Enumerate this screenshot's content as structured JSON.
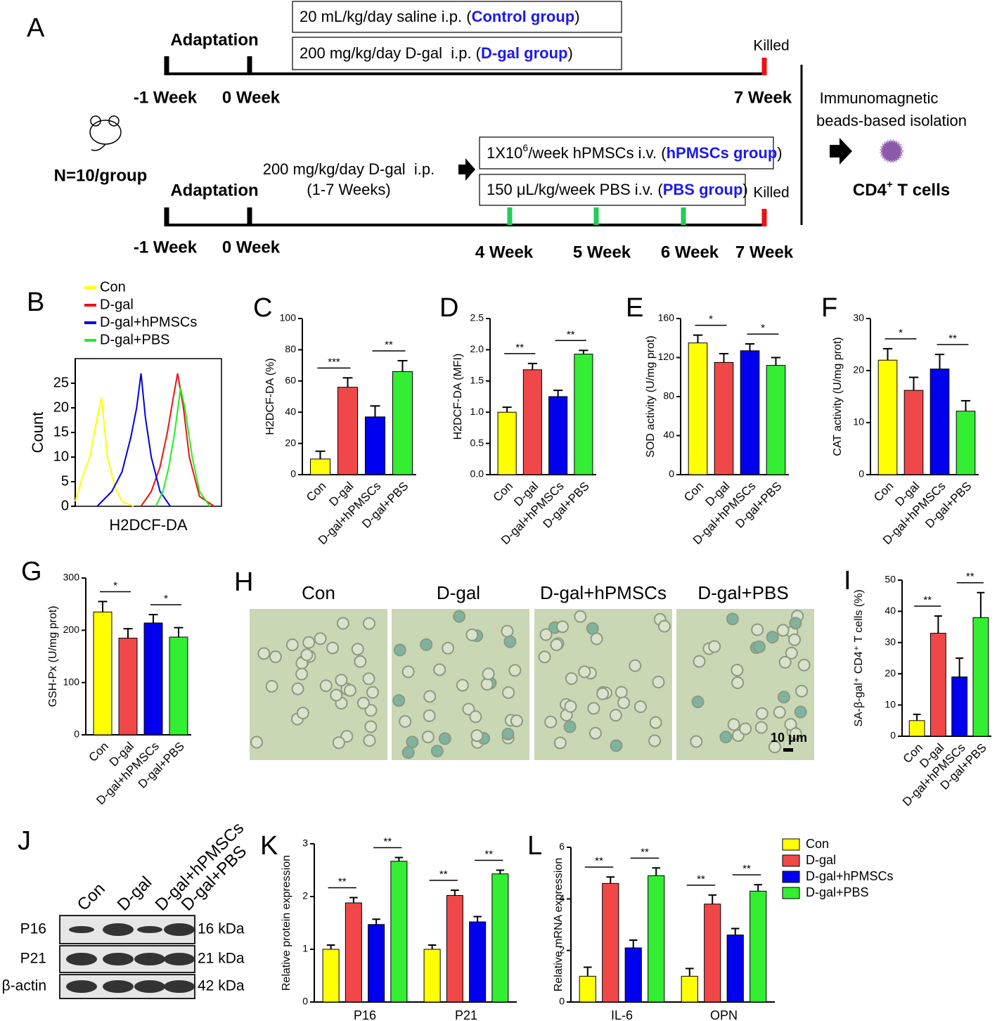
{
  "diagram": {
    "label": "A",
    "n": "N=10/group",
    "timeline1": {
      "phase": "Adaptation",
      "weeks": [
        "-1 Week",
        "0 Week",
        "7 Week"
      ],
      "end": "Killed",
      "boxes": [
        {
          "prefix": "20 mL/kg/day saline i.p. (",
          "group": "Control group",
          "suffix": ")"
        },
        {
          "prefix": "200 mg/kg/day D-gal  i.p. (",
          "group": "D-gal group",
          "suffix": ")"
        }
      ]
    },
    "timeline2": {
      "phase": "Adaptation",
      "treatment": [
        "200 mg/kg/day D-gal  i.p.",
        "(1-7 Weeks)"
      ],
      "weeks": [
        "-1 Week",
        "0 Week",
        "4 Week",
        "5 Week",
        "6 Week",
        "7 Week"
      ],
      "end": "Killed",
      "boxes": [
        {
          "prefix": "1X10",
          "sup": "6",
          "middle": "/week hPMSCs i.v. (",
          "group": "hPMSCs group",
          "suffix": ")"
        },
        {
          "prefix": "150 μL/kg/week PBS i.v. (",
          "group": "PBS group",
          "suffix": ")"
        }
      ]
    },
    "isolation": [
      "Immunomagnetic",
      "beads-based isolation"
    ],
    "cells": {
      "text": "CD4",
      "sup": "+",
      "suffix": " T cells"
    }
  },
  "chart_data": [
    {
      "type": "line",
      "panel": "B",
      "x_label": "H2DCF-DA",
      "y_label": "Count",
      "xlim": [
        0,
        100
      ],
      "ylim": [
        0,
        30
      ],
      "yticks": [
        0,
        5,
        10,
        15,
        20,
        25
      ],
      "series": [
        {
          "name": "Con",
          "color": "#ffff00",
          "x": [
            0,
            5,
            10,
            15,
            18,
            22,
            27,
            32,
            40
          ],
          "values": [
            1,
            6,
            10,
            18,
            22,
            10,
            4,
            1,
            0
          ]
        },
        {
          "name": "D-gal",
          "color": "#ee1111",
          "x": [
            45,
            52,
            58,
            63,
            67,
            70,
            74,
            78,
            85,
            95
          ],
          "values": [
            0,
            3,
            8,
            15,
            22,
            27,
            20,
            10,
            2,
            0
          ]
        },
        {
          "name": "D-gal+hPMSCs",
          "color": "#0000dd",
          "x": [
            15,
            25,
            32,
            38,
            42,
            45,
            48,
            52,
            58,
            65
          ],
          "values": [
            0,
            3,
            7,
            14,
            20,
            27,
            18,
            10,
            3,
            0
          ]
        },
        {
          "name": "D-gal+PBS",
          "color": "#22ee22",
          "x": [
            55,
            60,
            64,
            68,
            72,
            75,
            80,
            85,
            92
          ],
          "values": [
            0,
            3,
            8,
            15,
            24,
            20,
            10,
            3,
            0
          ]
        }
      ]
    },
    {
      "type": "bar",
      "panel": "C",
      "y_label": "H2DCF-DA (%)",
      "categories": [
        "Con",
        "D-gal",
        "D-gal+hPMSCs",
        "D-gal+PBS"
      ],
      "values": [
        10,
        56,
        37,
        66
      ],
      "errors": [
        5,
        6,
        7,
        7
      ],
      "colors": [
        "#ffff00",
        "#f04848",
        "#0000ee",
        "#33ee33"
      ],
      "ylim": [
        0,
        100
      ],
      "yticks": [
        0,
        20,
        40,
        60,
        80,
        100
      ],
      "significance": [
        "***",
        "**"
      ]
    },
    {
      "type": "bar",
      "panel": "D",
      "y_label": "H2DCF-DA (MFI)",
      "categories": [
        "Con",
        "D-gal",
        "D-gal+hPMSCs",
        "D-gal+PBS"
      ],
      "values": [
        1.0,
        1.68,
        1.25,
        1.93
      ],
      "errors": [
        0.08,
        0.1,
        0.1,
        0.06
      ],
      "colors": [
        "#ffff00",
        "#f04848",
        "#0000ee",
        "#33ee33"
      ],
      "ylim": [
        0,
        2.5
      ],
      "yticks": [
        {
          "value": 0,
          "label": "0.0"
        },
        0.5,
        {
          "value": 1,
          "label": "1.0"
        },
        1.5,
        {
          "value": 2,
          "label": "2.0"
        },
        2.5
      ],
      "significance": [
        "**",
        "**"
      ]
    },
    {
      "type": "bar",
      "panel": "E",
      "y_label": "SOD activity (U/mg prot)",
      "categories": [
        "Con",
        "D-gal",
        "D-gal+hPMSCs",
        "D-gal+PBS"
      ],
      "values": [
        135,
        115,
        127,
        112
      ],
      "errors": [
        8,
        9,
        7,
        8
      ],
      "colors": [
        "#ffff00",
        "#f04848",
        "#0000ee",
        "#33ee33"
      ],
      "ylim": [
        0,
        160
      ],
      "yticks": [
        0,
        40,
        80,
        120,
        160
      ],
      "significance": [
        "*",
        "*"
      ]
    },
    {
      "type": "bar",
      "panel": "F",
      "y_label": "CAT activity (U/mg prot)",
      "categories": [
        "Con",
        "D-gal",
        "D-gal+hPMSCs",
        "D-gal+PBS"
      ],
      "values": [
        22,
        16.2,
        20.3,
        12.2
      ],
      "errors": [
        2.2,
        2.5,
        2.8,
        2
      ],
      "colors": [
        "#ffff00",
        "#f04848",
        "#0000ee",
        "#33ee33"
      ],
      "ylim": [
        0,
        30
      ],
      "yticks": [
        0,
        10,
        20,
        30
      ],
      "significance": [
        "*",
        "**"
      ]
    },
    {
      "type": "bar",
      "panel": "G",
      "y_label": "GSH-Px (U/mg prot)",
      "categories": [
        "Con",
        "D-gal",
        "D-gal+hPMSCs",
        "D-gal+PBS"
      ],
      "values": [
        235,
        185,
        214,
        187
      ],
      "errors": [
        20,
        18,
        16,
        18
      ],
      "colors": [
        "#ffff00",
        "#f04848",
        "#0000ee",
        "#33ee33"
      ],
      "ylim": [
        0,
        300
      ],
      "yticks": [
        0,
        100,
        200,
        300
      ],
      "significance": [
        "*",
        "*"
      ]
    },
    {
      "type": "bar",
      "panel": "I",
      "y_label": "SA-β-gal⁺ CD4⁺ T cells (%)",
      "categories": [
        "Con",
        "D-gal",
        "D-gal+hPMSCs",
        "D-gal+PBS"
      ],
      "values": [
        5,
        33,
        19,
        38
      ],
      "errors": [
        2,
        5.5,
        6,
        8
      ],
      "colors": [
        "#ffff00",
        "#f04848",
        "#0000ee",
        "#33ee33"
      ],
      "ylim": [
        0,
        50
      ],
      "yticks": [
        0,
        10,
        20,
        30,
        40,
        50
      ],
      "significance": [
        "**",
        "**"
      ]
    },
    {
      "type": "grouped-bar",
      "panel": "K",
      "y_label": "Relative protein expression",
      "categories": [
        "P16",
        "P21"
      ],
      "series": [
        {
          "name": "Con",
          "color": "#ffff00",
          "values": [
            1,
            1
          ],
          "errors": [
            0.08,
            0.08
          ]
        },
        {
          "name": "D-gal",
          "color": "#f04848",
          "values": [
            1.88,
            2.02
          ],
          "errors": [
            0.1,
            0.1
          ]
        },
        {
          "name": "D-gal+hPMSCs",
          "color": "#0000ee",
          "values": [
            1.47,
            1.52
          ],
          "errors": [
            0.1,
            0.1
          ]
        },
        {
          "name": "D-gal+PBS",
          "color": "#33ee33",
          "values": [
            2.67,
            2.43
          ],
          "errors": [
            0.07,
            0.07
          ]
        }
      ],
      "ylim": [
        0,
        3
      ],
      "yticks": [
        0,
        1,
        2,
        3
      ],
      "significance": [
        "**",
        "**",
        "**",
        "**"
      ]
    },
    {
      "type": "grouped-bar",
      "panel": "L",
      "y_label": "Relative mRNA expression",
      "categories": [
        "IL-6",
        "OPN"
      ],
      "legend": true,
      "series": [
        {
          "name": "Con",
          "color": "#ffff00",
          "values": [
            1,
            1
          ],
          "errors": [
            0.35,
            0.3
          ]
        },
        {
          "name": "D-gal",
          "color": "#f04848",
          "values": [
            4.6,
            3.8
          ],
          "errors": [
            0.25,
            0.35
          ]
        },
        {
          "name": "D-gal+hPMSCs",
          "color": "#0000ee",
          "values": [
            2.1,
            2.6
          ],
          "errors": [
            0.3,
            0.25
          ]
        },
        {
          "name": "D-gal+PBS",
          "color": "#33ee33",
          "values": [
            4.9,
            4.3
          ],
          "errors": [
            0.3,
            0.25
          ]
        }
      ],
      "ylim": [
        0,
        6
      ],
      "yticks": [
        0,
        2,
        4,
        6
      ],
      "significance": [
        "**",
        "**",
        "**",
        "**"
      ]
    }
  ],
  "micrographs": {
    "label": "H",
    "titles": [
      "Con",
      "D-gal",
      "D-gal+hPMSCs",
      "D-gal+PBS"
    ],
    "scale": "10 μm"
  },
  "western_blot": {
    "label": "J",
    "samples": [
      "Con",
      "D-gal",
      "D-gal+hPMSCs",
      "D-gal+PBS"
    ],
    "rows": [
      "P16",
      "P21",
      "β-actin"
    ],
    "sizes": [
      "16 kDa",
      "21 kDa",
      "42 kDa"
    ]
  }
}
